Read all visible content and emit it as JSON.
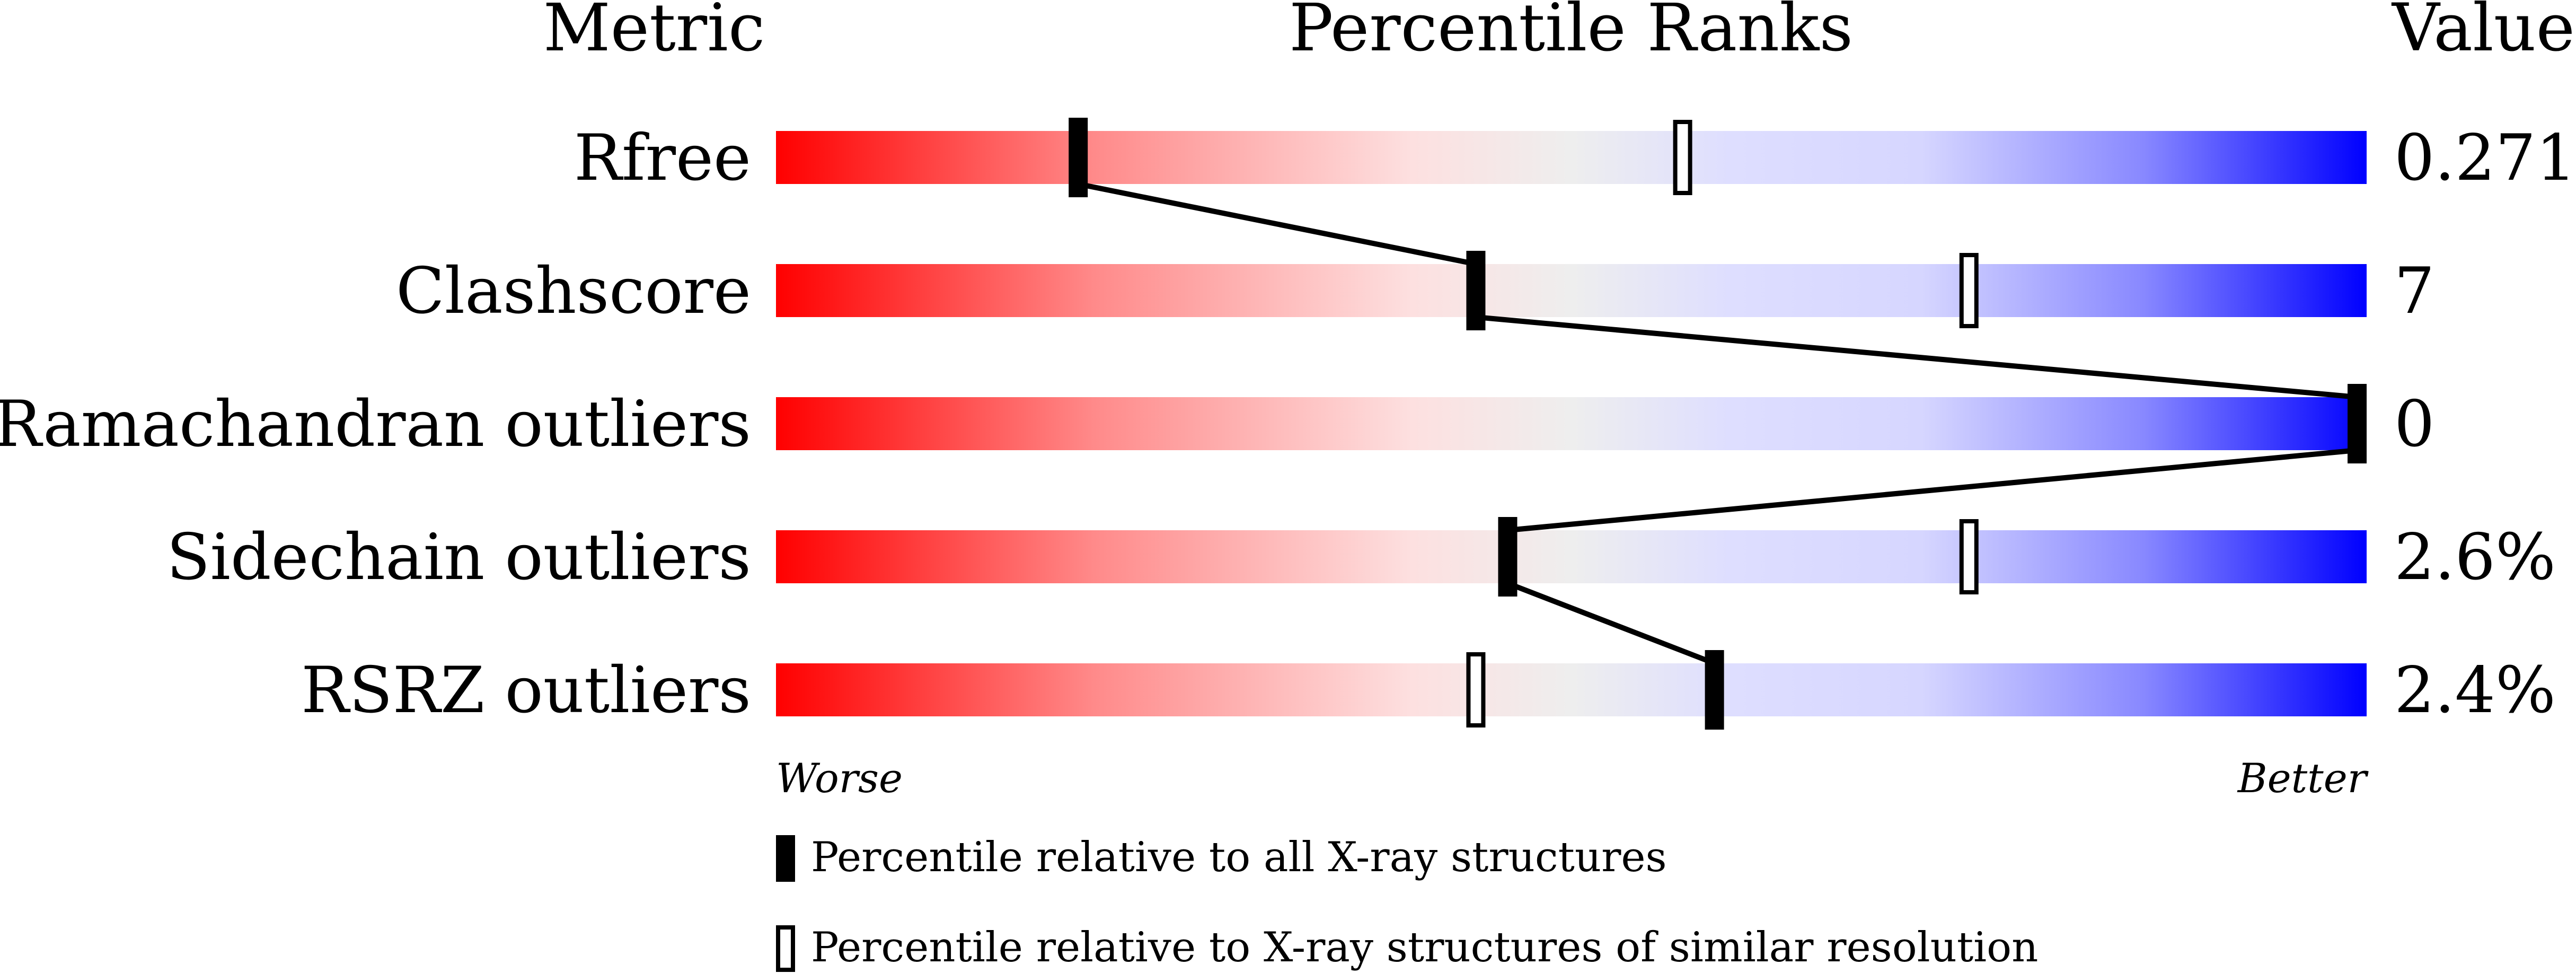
{
  "chart_data": {
    "type": "bar",
    "headers": {
      "metric": "Metric",
      "percentile": "Percentile Ranks",
      "value": "Value"
    },
    "xlim": [
      0,
      100
    ],
    "axis_labels": {
      "worse": "Worse",
      "better": "Better"
    },
    "metrics": [
      {
        "name": "Rfree",
        "value": "0.271",
        "percentile_all": 19,
        "percentile_similar": 57
      },
      {
        "name": "Clashscore",
        "value": "7",
        "percentile_all": 44,
        "percentile_similar": 75
      },
      {
        "name": "Ramachandran outliers",
        "value": "0",
        "percentile_all": 100,
        "percentile_similar": 100
      },
      {
        "name": "Sidechain outliers",
        "value": "2.6%",
        "percentile_all": 46,
        "percentile_similar": 75
      },
      {
        "name": "RSRZ outliers",
        "value": "2.4%",
        "percentile_all": 59,
        "percentile_similar": 44
      }
    ],
    "legend": {
      "all": "Percentile relative to all X-ray structures",
      "similar": "Percentile relative to X-ray structures of similar resolution"
    },
    "colors": {
      "worse": "#ff0000",
      "middle": "#eeeeee",
      "better": "#0000ff",
      "marker": "#000000"
    }
  }
}
